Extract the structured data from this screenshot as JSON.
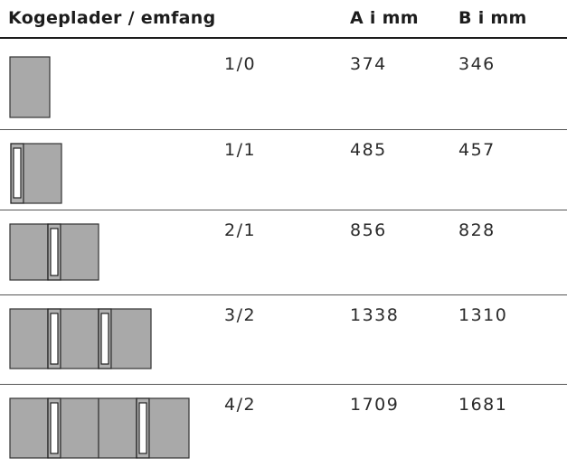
{
  "header": {
    "col_label": "Kogeplader / emfang",
    "col_a": "A i mm",
    "col_b": "B i mm"
  },
  "rows": [
    {
      "config": "1/0",
      "a": "374",
      "b": "346",
      "icon": "single-hob-icon"
    },
    {
      "config": "1/1",
      "a": "485",
      "b": "457",
      "icon": "hob-with-extractor-icon"
    },
    {
      "config": "2/1",
      "a": "856",
      "b": "828",
      "icon": "two-hobs-one-extractor-icon"
    },
    {
      "config": "3/2",
      "a": "1338",
      "b": "1310",
      "icon": "three-hobs-two-extractors-icon"
    },
    {
      "config": "4/2",
      "a": "1709",
      "b": "1681",
      "icon": "four-hobs-two-extractors-icon"
    }
  ]
}
